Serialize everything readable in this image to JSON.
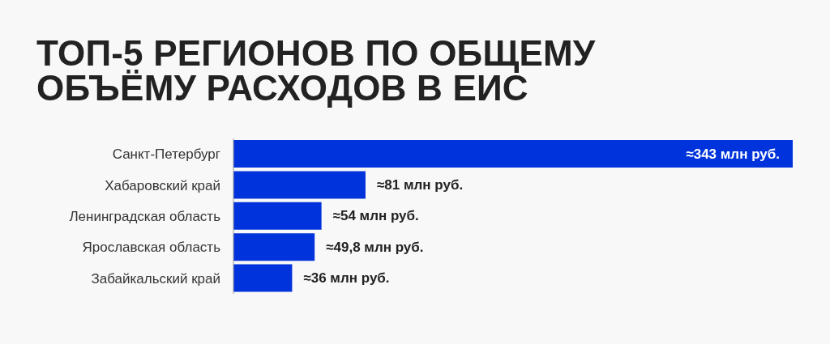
{
  "chart_data": {
    "type": "bar",
    "orientation": "horizontal",
    "title": "ТОП-5 РЕГИОНОВ ПО ОБЩЕМУ ОБЪЁМУ РАСХОДОВ В ЕИС",
    "categories": [
      "Санкт-Петербург",
      "Хабаровский край",
      "Ленинградская область",
      "Ярославская область",
      "Забайкальский край"
    ],
    "values": [
      343,
      81,
      54,
      49.8,
      36
    ],
    "color": "#0033dc",
    "value_labels": [
      "≈343 млн руб.",
      "≈81 млн руб.",
      "≈54 млн руб.",
      "≈49,8 млн руб.",
      "≈36 млн руб."
    ]
  }
}
